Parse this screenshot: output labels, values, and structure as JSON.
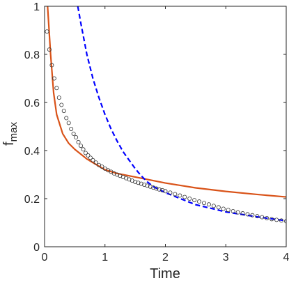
{
  "chart_data": {
    "type": "line",
    "xlabel": "Time",
    "ylabel": {
      "main": "f",
      "subscript": "max"
    },
    "xlim": [
      0,
      4
    ],
    "ylim": [
      0,
      1
    ],
    "xticks": [
      0,
      1,
      2,
      3,
      4
    ],
    "yticks": [
      0,
      0.2,
      0.4,
      0.6,
      0.8,
      1
    ],
    "xtick_labels": [
      "0",
      "1",
      "2",
      "3",
      "4"
    ],
    "ytick_labels": [
      "0",
      "0.2",
      "0.4",
      "0.6",
      "0.8",
      "1"
    ],
    "grid": false,
    "series": [
      {
        "style": "solid-line",
        "color": "#d95319",
        "x": [
          0.05,
          0.1,
          0.15,
          0.2,
          0.3,
          0.4,
          0.5,
          0.6,
          0.7,
          0.8,
          1.0,
          1.2,
          1.5,
          2.0,
          2.5,
          3.0,
          3.5,
          4.0
        ],
        "y": [
          1.0,
          0.8,
          0.64,
          0.55,
          0.47,
          0.43,
          0.405,
          0.385,
          0.365,
          0.35,
          0.32,
          0.305,
          0.29,
          0.265,
          0.245,
          0.23,
          0.218,
          0.207
        ]
      },
      {
        "style": "dashed-line",
        "color": "#0000ff",
        "x": [
          0.55,
          0.6,
          0.7,
          0.8,
          0.9,
          1.0,
          1.1,
          1.2,
          1.3,
          1.4,
          1.5,
          1.6,
          1.7,
          1.8,
          2.0,
          2.5,
          3.0,
          3.5,
          4.0
        ],
        "y": [
          1.0,
          0.93,
          0.8,
          0.7,
          0.62,
          0.55,
          0.49,
          0.44,
          0.395,
          0.36,
          0.325,
          0.295,
          0.27,
          0.25,
          0.225,
          0.175,
          0.145,
          0.125,
          0.108
        ]
      },
      {
        "style": "open-circles",
        "color": "#333333",
        "x": [
          0.04,
          0.08,
          0.12,
          0.16,
          0.2,
          0.24,
          0.28,
          0.32,
          0.36,
          0.4,
          0.44,
          0.48,
          0.52,
          0.56,
          0.6,
          0.64,
          0.68,
          0.72,
          0.76,
          0.8,
          0.85,
          0.9,
          0.95,
          1.0,
          1.05,
          1.1,
          1.15,
          1.2,
          1.25,
          1.3,
          1.35,
          1.4,
          1.45,
          1.5,
          1.55,
          1.6,
          1.65,
          1.7,
          1.75,
          1.8,
          1.85,
          1.9,
          1.95,
          2.0,
          2.08,
          2.16,
          2.24,
          2.32,
          2.4,
          2.48,
          2.56,
          2.64,
          2.72,
          2.8,
          2.88,
          2.96,
          3.04,
          3.12,
          3.2,
          3.28,
          3.36,
          3.44,
          3.52,
          3.6,
          3.68,
          3.76,
          3.84,
          3.92,
          4.0
        ],
        "y": [
          0.895,
          0.82,
          0.755,
          0.7,
          0.66,
          0.62,
          0.59,
          0.565,
          0.535,
          0.515,
          0.49,
          0.47,
          0.455,
          0.435,
          0.42,
          0.405,
          0.39,
          0.38,
          0.37,
          0.36,
          0.35,
          0.34,
          0.333,
          0.325,
          0.318,
          0.312,
          0.305,
          0.3,
          0.295,
          0.29,
          0.285,
          0.28,
          0.275,
          0.27,
          0.266,
          0.262,
          0.258,
          0.254,
          0.25,
          0.246,
          0.242,
          0.238,
          0.235,
          0.231,
          0.225,
          0.219,
          0.213,
          0.207,
          0.2,
          0.194,
          0.188,
          0.182,
          0.176,
          0.17,
          0.164,
          0.158,
          0.153,
          0.148,
          0.143,
          0.139,
          0.135,
          0.131,
          0.127,
          0.123,
          0.119,
          0.115,
          0.112,
          0.109,
          0.106
        ]
      }
    ]
  }
}
